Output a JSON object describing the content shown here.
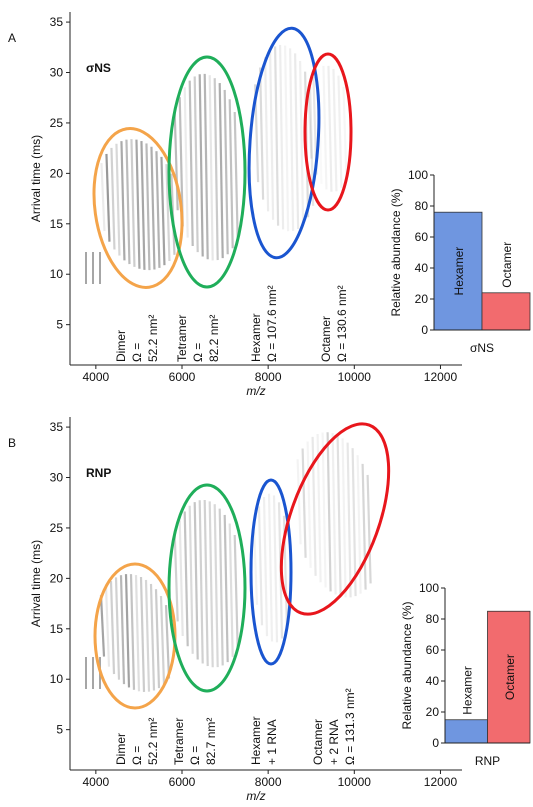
{
  "chart_data": [
    {
      "type": "heatmap",
      "panel_label": "A",
      "title": "σNS",
      "x_label": "m/z",
      "y_label": "Arrival time (ms)",
      "xlim": [
        3400,
        12500
      ],
      "ylim": [
        1,
        36
      ],
      "xticks": [
        4000,
        6000,
        8000,
        10000,
        12000
      ],
      "yticks": [
        5,
        10,
        15,
        20,
        25,
        30,
        35
      ],
      "annotations": [
        {
          "lines": [
            "Dimer",
            "Ω =",
            "52.2 nm²"
          ],
          "color": "#f4a44a"
        },
        {
          "lines": [
            "Tetramer",
            "Ω =",
            "82.2 nm²"
          ],
          "color": "#1fae5a"
        },
        {
          "lines": [
            "Hexamer",
            "Ω = 107.6 nm²"
          ],
          "color": "#1a55d0"
        },
        {
          "lines": [
            "Octamer",
            "Ω = 130.6 nm²"
          ],
          "color": "#e8161c"
        }
      ]
    },
    {
      "type": "bar",
      "x_label": "σNS",
      "y_label": "Relative abundance (%)",
      "categories": [
        "Hexamer",
        "Octamer"
      ],
      "values": [
        76,
        24
      ],
      "colors": [
        "#6f96e0",
        "#f26b6e"
      ],
      "ylim": [
        0,
        100
      ],
      "yticks": [
        0,
        20,
        40,
        60,
        80,
        100
      ]
    },
    {
      "type": "heatmap",
      "panel_label": "B",
      "title": "RNP",
      "x_label": "m/z",
      "y_label": "Arrival time (ms)",
      "xlim": [
        3400,
        12500
      ],
      "ylim": [
        1,
        36
      ],
      "xticks": [
        4000,
        6000,
        8000,
        10000,
        12000
      ],
      "yticks": [
        5,
        10,
        15,
        20,
        25,
        30,
        35
      ],
      "annotations": [
        {
          "lines": [
            "Dimer",
            "Ω =",
            "52.2 nm²"
          ],
          "color": "#f4a44a"
        },
        {
          "lines": [
            "Tetramer",
            "Ω =",
            "82.7 nm²"
          ],
          "color": "#1fae5a"
        },
        {
          "lines": [
            "Hexamer",
            "+ 1 RNA"
          ],
          "color": "#1a55d0"
        },
        {
          "lines": [
            "Octamer",
            "+ 2 RNA",
            "Ω = 131.3 nm²"
          ],
          "color": "#e8161c"
        }
      ]
    },
    {
      "type": "bar",
      "x_label": "RNP",
      "y_label": "Relative abundance (%)",
      "categories": [
        "Hexamer",
        "Octamer"
      ],
      "values": [
        15,
        85
      ],
      "colors": [
        "#6f96e0",
        "#f26b6e"
      ],
      "ylim": [
        0,
        100
      ],
      "yticks": [
        0,
        20,
        40,
        60,
        80,
        100
      ]
    }
  ]
}
